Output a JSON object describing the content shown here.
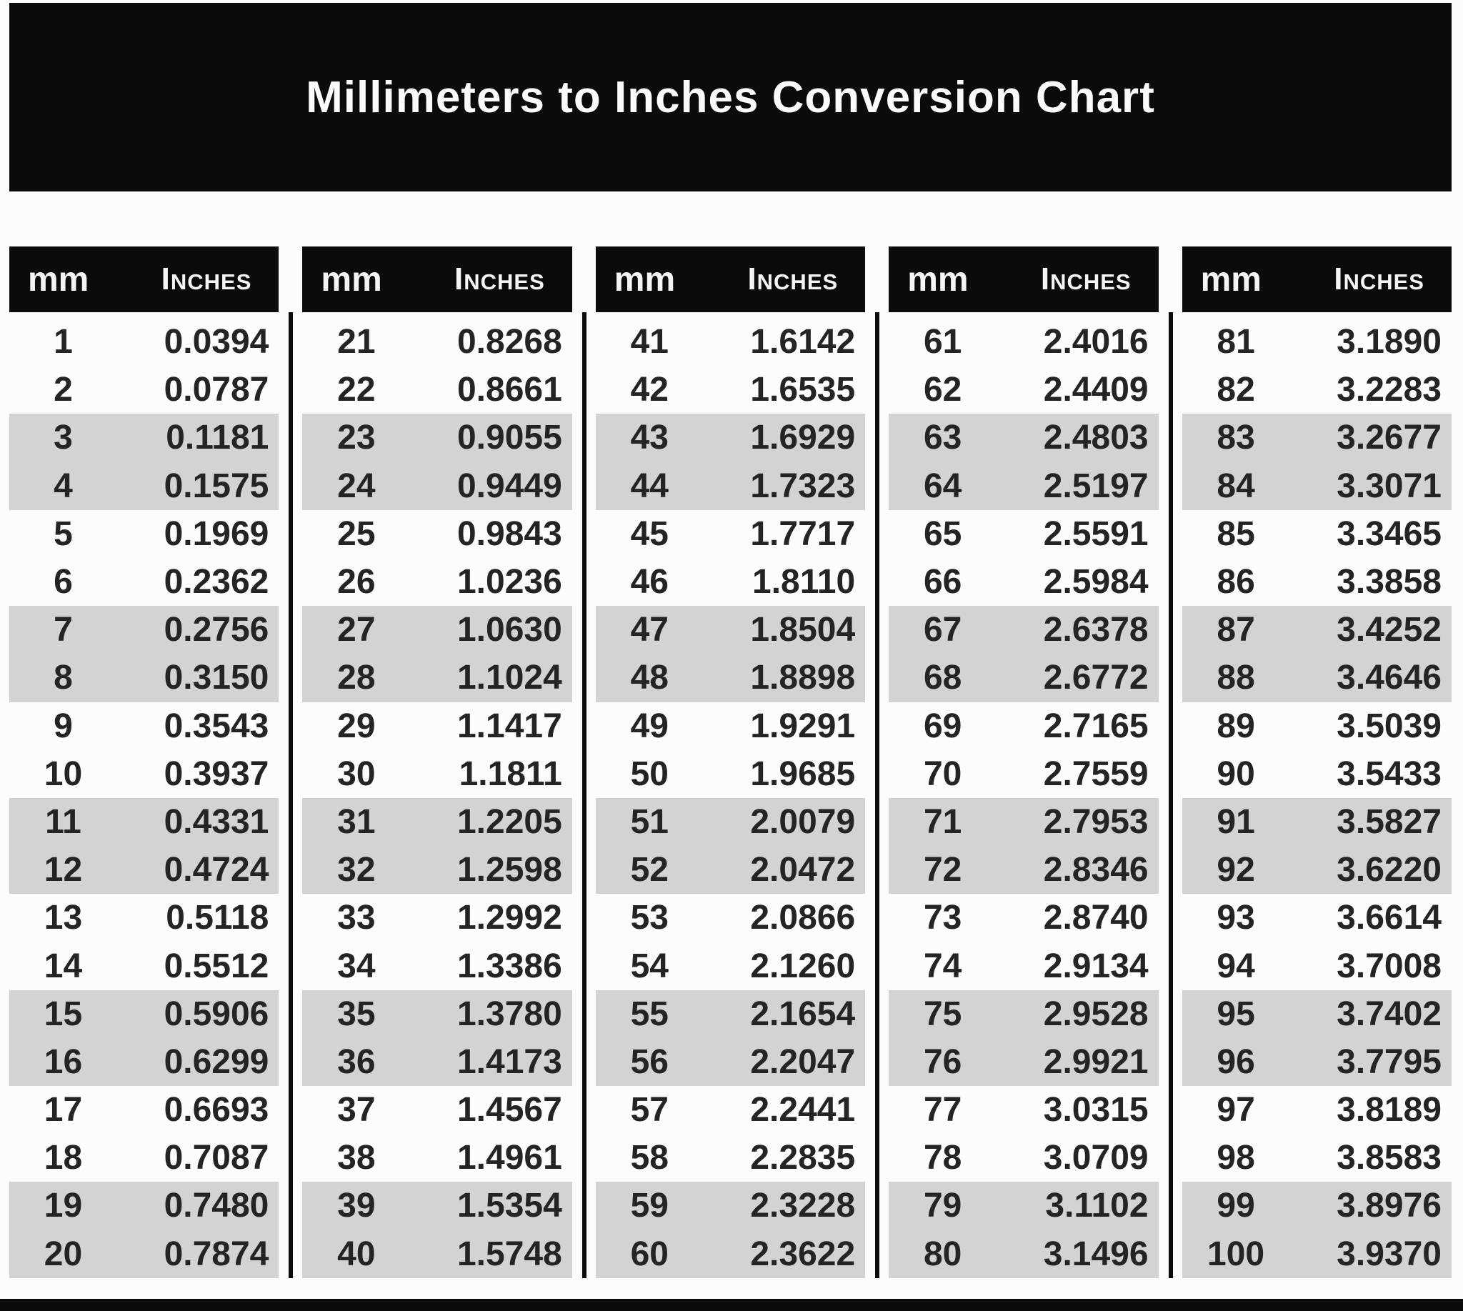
{
  "page": {
    "title": "Millimeters to Inches Conversion Chart"
  },
  "colors": {
    "banner_and_header_bg": "#0b0b0b",
    "shaded_row": "#d3d3d5",
    "paper": "#fcfcfc",
    "header_text": "#f5f5f5",
    "cell_text": "#242424"
  },
  "table": {
    "header": {
      "mm_label": "mm",
      "inches_label": "Inches"
    },
    "groups": [
      {
        "rows": [
          [
            "1",
            "0.0394"
          ],
          [
            "2",
            "0.0787"
          ],
          [
            "3",
            "0.1181"
          ],
          [
            "4",
            "0.1575"
          ],
          [
            "5",
            "0.1969"
          ],
          [
            "6",
            "0.2362"
          ],
          [
            "7",
            "0.2756"
          ],
          [
            "8",
            "0.3150"
          ],
          [
            "9",
            "0.3543"
          ],
          [
            "10",
            "0.3937"
          ],
          [
            "11",
            "0.4331"
          ],
          [
            "12",
            "0.4724"
          ],
          [
            "13",
            "0.5118"
          ],
          [
            "14",
            "0.5512"
          ],
          [
            "15",
            "0.5906"
          ],
          [
            "16",
            "0.6299"
          ],
          [
            "17",
            "0.6693"
          ],
          [
            "18",
            "0.7087"
          ],
          [
            "19",
            "0.7480"
          ],
          [
            "20",
            "0.7874"
          ]
        ]
      },
      {
        "rows": [
          [
            "21",
            "0.8268"
          ],
          [
            "22",
            "0.8661"
          ],
          [
            "23",
            "0.9055"
          ],
          [
            "24",
            "0.9449"
          ],
          [
            "25",
            "0.9843"
          ],
          [
            "26",
            "1.0236"
          ],
          [
            "27",
            "1.0630"
          ],
          [
            "28",
            "1.1024"
          ],
          [
            "29",
            "1.1417"
          ],
          [
            "30",
            "1.1811"
          ],
          [
            "31",
            "1.2205"
          ],
          [
            "32",
            "1.2598"
          ],
          [
            "33",
            "1.2992"
          ],
          [
            "34",
            "1.3386"
          ],
          [
            "35",
            "1.3780"
          ],
          [
            "36",
            "1.4173"
          ],
          [
            "37",
            "1.4567"
          ],
          [
            "38",
            "1.4961"
          ],
          [
            "39",
            "1.5354"
          ],
          [
            "40",
            "1.5748"
          ]
        ]
      },
      {
        "rows": [
          [
            "41",
            "1.6142"
          ],
          [
            "42",
            "1.6535"
          ],
          [
            "43",
            "1.6929"
          ],
          [
            "44",
            "1.7323"
          ],
          [
            "45",
            "1.7717"
          ],
          [
            "46",
            "1.8110"
          ],
          [
            "47",
            "1.8504"
          ],
          [
            "48",
            "1.8898"
          ],
          [
            "49",
            "1.9291"
          ],
          [
            "50",
            "1.9685"
          ],
          [
            "51",
            "2.0079"
          ],
          [
            "52",
            "2.0472"
          ],
          [
            "53",
            "2.0866"
          ],
          [
            "54",
            "2.1260"
          ],
          [
            "55",
            "2.1654"
          ],
          [
            "56",
            "2.2047"
          ],
          [
            "57",
            "2.2441"
          ],
          [
            "58",
            "2.2835"
          ],
          [
            "59",
            "2.3228"
          ],
          [
            "60",
            "2.3622"
          ]
        ]
      },
      {
        "rows": [
          [
            "61",
            "2.4016"
          ],
          [
            "62",
            "2.4409"
          ],
          [
            "63",
            "2.4803"
          ],
          [
            "64",
            "2.5197"
          ],
          [
            "65",
            "2.5591"
          ],
          [
            "66",
            "2.5984"
          ],
          [
            "67",
            "2.6378"
          ],
          [
            "68",
            "2.6772"
          ],
          [
            "69",
            "2.7165"
          ],
          [
            "70",
            "2.7559"
          ],
          [
            "71",
            "2.7953"
          ],
          [
            "72",
            "2.8346"
          ],
          [
            "73",
            "2.8740"
          ],
          [
            "74",
            "2.9134"
          ],
          [
            "75",
            "2.9528"
          ],
          [
            "76",
            "2.9921"
          ],
          [
            "77",
            "3.0315"
          ],
          [
            "78",
            "3.0709"
          ],
          [
            "79",
            "3.1102"
          ],
          [
            "80",
            "3.1496"
          ]
        ]
      },
      {
        "rows": [
          [
            "81",
            "3.1890"
          ],
          [
            "82",
            "3.2283"
          ],
          [
            "83",
            "3.2677"
          ],
          [
            "84",
            "3.3071"
          ],
          [
            "85",
            "3.3465"
          ],
          [
            "86",
            "3.3858"
          ],
          [
            "87",
            "3.4252"
          ],
          [
            "88",
            "3.4646"
          ],
          [
            "89",
            "3.5039"
          ],
          [
            "90",
            "3.5433"
          ],
          [
            "91",
            "3.5827"
          ],
          [
            "92",
            "3.6220"
          ],
          [
            "93",
            "3.6614"
          ],
          [
            "94",
            "3.7008"
          ],
          [
            "95",
            "3.7402"
          ],
          [
            "96",
            "3.7795"
          ],
          [
            "97",
            "3.8189"
          ],
          [
            "98",
            "3.8583"
          ],
          [
            "99",
            "3.8976"
          ],
          [
            "100",
            "3.9370"
          ]
        ]
      }
    ]
  }
}
